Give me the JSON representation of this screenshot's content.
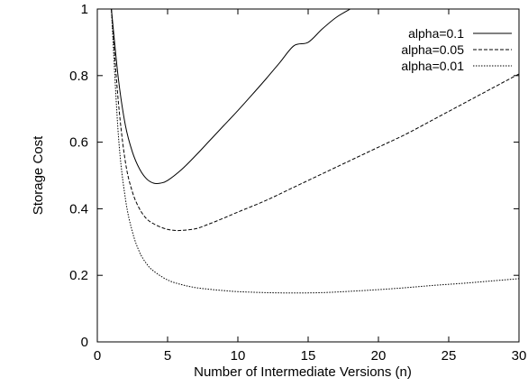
{
  "chart_data": {
    "type": "line",
    "title": "",
    "xlabel": "Number of Intermediate Versions (n)",
    "ylabel": "Storage Cost",
    "xlim": [
      0,
      30
    ],
    "ylim": [
      0,
      1
    ],
    "x_ticks": [
      "0",
      "5",
      "10",
      "15",
      "20",
      "25",
      "30"
    ],
    "y_ticks": [
      "0",
      "0.2",
      "0.4",
      "0.6",
      "0.8",
      "1"
    ],
    "grid": false,
    "legend_position": "top-right",
    "series": [
      {
        "name": "alpha=0.1",
        "dash": "solid",
        "x": [
          1,
          1.5,
          2,
          2.5,
          3,
          3.5,
          4,
          4.5,
          5,
          6,
          7,
          8,
          9,
          10,
          11,
          12,
          13,
          14,
          15,
          16,
          17,
          18
        ],
        "y": [
          1.0,
          0.79,
          0.65,
          0.57,
          0.52,
          0.49,
          0.477,
          0.477,
          0.485,
          0.518,
          0.56,
          0.605,
          0.65,
          0.695,
          0.742,
          0.79,
          0.84,
          0.89,
          0.9,
          0.94,
          0.975,
          1.0
        ]
      },
      {
        "name": "alpha=0.05",
        "dash": "dashed",
        "x": [
          1,
          1.5,
          2,
          2.5,
          3,
          3.5,
          4,
          4.5,
          5,
          5.5,
          6,
          7,
          8,
          9,
          10,
          12,
          14,
          16,
          18,
          20,
          22,
          24,
          26,
          28,
          30
        ],
        "y": [
          1.0,
          0.72,
          0.54,
          0.45,
          0.4,
          0.37,
          0.355,
          0.345,
          0.338,
          0.335,
          0.335,
          0.34,
          0.355,
          0.372,
          0.39,
          0.425,
          0.465,
          0.505,
          0.545,
          0.585,
          0.625,
          0.67,
          0.715,
          0.76,
          0.805
        ]
      },
      {
        "name": "alpha=0.01",
        "dash": "dotted",
        "x": [
          1,
          1.5,
          2,
          2.5,
          3,
          3.5,
          4,
          5,
          6,
          7,
          8,
          9,
          10,
          12,
          14,
          16,
          18,
          20,
          22,
          24,
          26,
          28,
          30
        ],
        "y": [
          1.0,
          0.62,
          0.43,
          0.33,
          0.27,
          0.235,
          0.213,
          0.186,
          0.172,
          0.163,
          0.158,
          0.154,
          0.151,
          0.148,
          0.147,
          0.148,
          0.152,
          0.157,
          0.163,
          0.17,
          0.176,
          0.183,
          0.19
        ]
      }
    ]
  }
}
